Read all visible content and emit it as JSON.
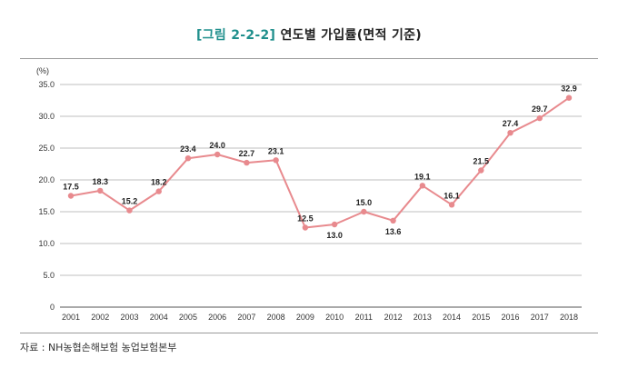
{
  "figure": {
    "number": "[그림 2-2-2]",
    "title": "연도별 가입률(면적 기준)"
  },
  "source_note": "자료 : NH농협손해보험 농업보험본부",
  "colors": {
    "line": "#e88a8e",
    "marker": "#e88a8e",
    "grid": "#bfbfbf",
    "figure_number": "#1f8f8c"
  },
  "chart_data": {
    "type": "line",
    "title": "연도별 가입률(면적 기준)",
    "ylabel": "(%)",
    "xlabel": "",
    "ylim": [
      0,
      35
    ],
    "yticks": [
      "0",
      "5.0",
      "10.0",
      "15.0",
      "20.0",
      "25.0",
      "30.0",
      "35.0"
    ],
    "grid": true,
    "categories": [
      "2001",
      "2002",
      "2003",
      "2004",
      "2005",
      "2006",
      "2007",
      "2008",
      "2009",
      "2010",
      "2011",
      "2012",
      "2013",
      "2014",
      "2015",
      "2016",
      "2017",
      "2018"
    ],
    "values": [
      17.5,
      18.3,
      15.2,
      18.2,
      23.4,
      24.0,
      22.7,
      23.1,
      12.5,
      13.0,
      15.0,
      13.6,
      19.1,
      16.1,
      21.5,
      27.4,
      29.7,
      32.9
    ],
    "labels": [
      "17.5",
      "18.3",
      "15.2",
      "18.2",
      "23.4",
      "24.0",
      "22.7",
      "23.1",
      "12.5",
      "13.0",
      "15.0",
      "13.6",
      "19.1",
      "16.1",
      "21.5",
      "27.4",
      "29.7",
      "32.9"
    ],
    "label_position": [
      "above",
      "above",
      "above",
      "above",
      "above",
      "above",
      "above",
      "above",
      "above",
      "below",
      "above",
      "below",
      "above",
      "above",
      "above",
      "above",
      "above",
      "above"
    ]
  }
}
